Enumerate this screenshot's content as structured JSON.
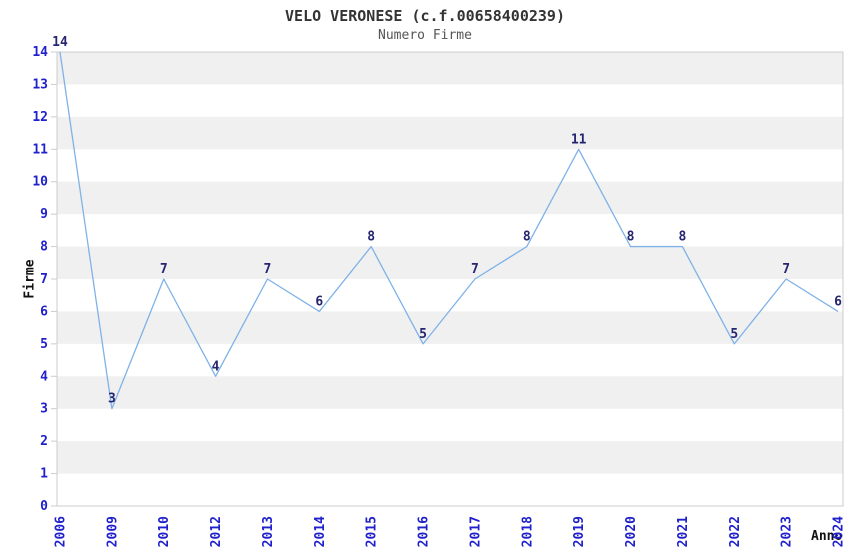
{
  "title": "VELO VERONESE (c.f.00658400239)",
  "subtitle": "Numero Firme",
  "chart_data": {
    "type": "line",
    "title": "VELO VERONESE (c.f.00658400239)",
    "subtitle": "Numero Firme",
    "xlabel": "Anno",
    "ylabel": "Firme",
    "categories": [
      "2006",
      "2009",
      "2010",
      "2012",
      "2013",
      "2014",
      "2015",
      "2016",
      "2017",
      "2018",
      "2019",
      "2020",
      "2021",
      "2022",
      "2023",
      "2024"
    ],
    "values": [
      14,
      3,
      7,
      4,
      7,
      6,
      8,
      5,
      7,
      8,
      11,
      8,
      8,
      5,
      7,
      6
    ],
    "ylim": [
      0,
      14
    ],
    "y_tick_step": 1,
    "grid": "alternating-horizontal-bands",
    "legend_position": "none",
    "point_labels_visible": true,
    "colors": {
      "line": "#7fb2e8",
      "point_label": "#252570",
      "tick_label": "#2020cc",
      "band": "#f0f0f0",
      "plot_background": "#ffffff",
      "axis_border": "#cccccc",
      "title": "#333333",
      "subtitle": "#555555",
      "axis_title": "#111111"
    }
  }
}
